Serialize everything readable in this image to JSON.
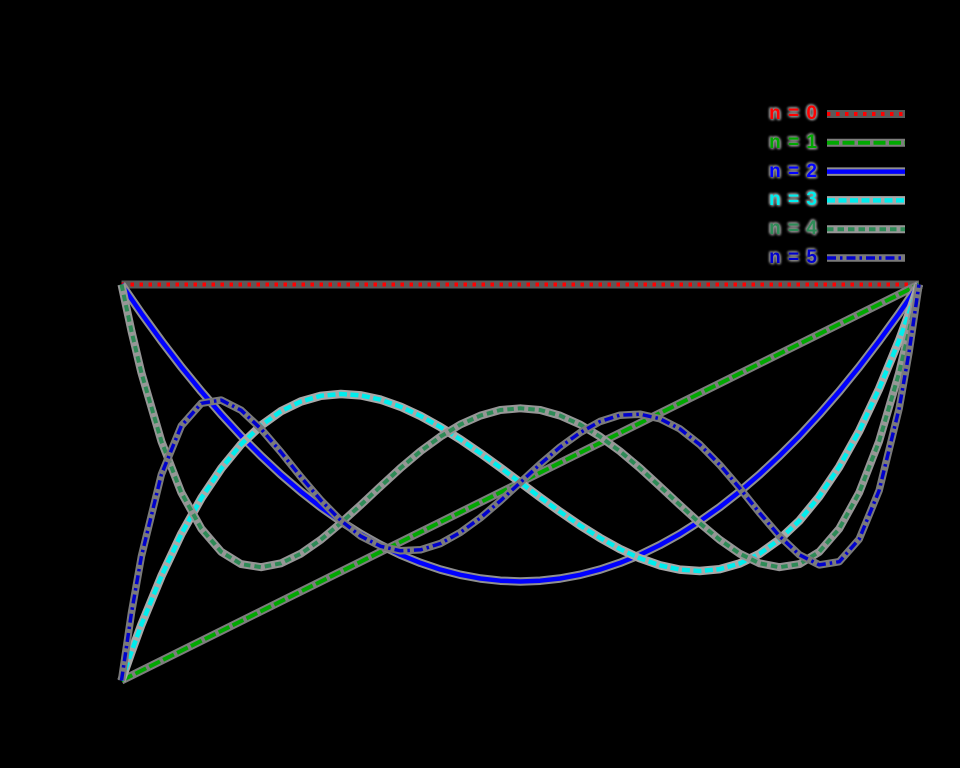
{
  "figure": {
    "background": "#000000",
    "halo_note": "each curve and legend sample has a continuous gray anti-alias halo band under it",
    "legend": {
      "position": "top-right, above plot area",
      "labels": [
        "n = 0",
        "n = 1",
        "n = 2",
        "n = 3",
        "n = 4",
        "n = 5"
      ]
    }
  },
  "chart_data": {
    "type": "line",
    "title": "",
    "xlabel": "",
    "ylabel": "",
    "xlim": [
      -1,
      1
    ],
    "ylim": [
      -1,
      1
    ],
    "grid": false,
    "legend_position": "top-right outside plot box",
    "description": "First six Legendre polynomials P_n(x) on [-1,1]",
    "series": [
      {
        "name": "n = 0",
        "color": "#ff0000",
        "halo": "#5a5a5a",
        "dash": "dotted",
        "width": 4,
        "x": [
          -1,
          1
        ],
        "y": [
          1,
          1
        ]
      },
      {
        "name": "n = 1",
        "color": "#00a800",
        "halo": "#7d7d7d",
        "dash": "longdash",
        "width": 4,
        "x": [
          -1,
          1
        ],
        "y": [
          -1,
          1
        ]
      },
      {
        "name": "n = 2",
        "color": "#0000ff",
        "halo": "#8f8f8f",
        "dash": "solid",
        "width": 4.5,
        "x": [
          -1,
          -0.95,
          -0.9,
          -0.85,
          -0.8,
          -0.75,
          -0.7,
          -0.65,
          -0.6,
          -0.55,
          -0.5,
          -0.45,
          -0.4,
          -0.35,
          -0.3,
          -0.25,
          -0.2,
          -0.15,
          -0.1,
          -0.05,
          0,
          0.05,
          0.1,
          0.15,
          0.2,
          0.25,
          0.3,
          0.35,
          0.4,
          0.45,
          0.5,
          0.55,
          0.6,
          0.65,
          0.7,
          0.75,
          0.8,
          0.85,
          0.9,
          0.95,
          1
        ],
        "y": [
          1,
          0.854,
          0.715,
          0.584,
          0.46,
          0.344,
          0.235,
          0.134,
          0.04,
          -0.046,
          -0.125,
          -0.196,
          -0.26,
          -0.316,
          -0.365,
          -0.406,
          -0.44,
          -0.466,
          -0.485,
          -0.496,
          -0.5,
          -0.496,
          -0.485,
          -0.466,
          -0.44,
          -0.406,
          -0.365,
          -0.316,
          -0.26,
          -0.196,
          -0.125,
          -0.046,
          0.04,
          0.134,
          0.235,
          0.344,
          0.46,
          0.584,
          0.715,
          0.854,
          1
        ]
      },
      {
        "name": "n = 3",
        "color": "#00eeee",
        "halo": "#a9a9a9",
        "dash": "dash",
        "width": 4.5,
        "x": [
          -1,
          -0.975,
          -0.95,
          -0.9,
          -0.85,
          -0.8,
          -0.75,
          -0.7,
          -0.65,
          -0.6,
          -0.55,
          -0.5,
          -0.45,
          -0.4,
          -0.35,
          -0.3,
          -0.25,
          -0.2,
          -0.15,
          -0.1,
          -0.05,
          0,
          0.05,
          0.1,
          0.15,
          0.2,
          0.25,
          0.3,
          0.35,
          0.4,
          0.45,
          0.5,
          0.55,
          0.6,
          0.65,
          0.7,
          0.75,
          0.8,
          0.85,
          0.9,
          0.95,
          0.975,
          1
        ],
        "y": [
          -1,
          -0.855,
          -0.718,
          -0.473,
          -0.26,
          -0.08,
          0.07,
          0.193,
          0.288,
          0.36,
          0.409,
          0.438,
          0.447,
          0.44,
          0.418,
          0.383,
          0.336,
          0.28,
          0.217,
          0.148,
          0.075,
          0,
          -0.075,
          -0.148,
          -0.217,
          -0.28,
          -0.336,
          -0.383,
          -0.418,
          -0.44,
          -0.447,
          -0.438,
          -0.409,
          -0.36,
          -0.288,
          -0.193,
          -0.07,
          0.08,
          0.26,
          0.473,
          0.718,
          0.855,
          1
        ]
      },
      {
        "name": "n = 4",
        "color": "#2e8b57",
        "halo": "#969696",
        "dash": "shortdash",
        "width": 4,
        "x": [
          -1,
          -0.975,
          -0.95,
          -0.9,
          -0.85,
          -0.8,
          -0.75,
          -0.7,
          -0.65,
          -0.6,
          -0.55,
          -0.5,
          -0.45,
          -0.4,
          -0.35,
          -0.3,
          -0.25,
          -0.2,
          -0.15,
          -0.1,
          -0.05,
          0,
          0.05,
          0.1,
          0.15,
          0.2,
          0.25,
          0.3,
          0.35,
          0.4,
          0.45,
          0.5,
          0.55,
          0.6,
          0.65,
          0.7,
          0.75,
          0.8,
          0.85,
          0.9,
          0.95,
          0.975,
          1
        ],
        "y": [
          1,
          0.764,
          0.554,
          0.208,
          -0.051,
          -0.233,
          -0.35,
          -0.412,
          -0.428,
          -0.408,
          -0.359,
          -0.289,
          -0.205,
          -0.113,
          -0.019,
          0.073,
          0.158,
          0.232,
          0.293,
          0.338,
          0.366,
          0.375,
          0.366,
          0.338,
          0.293,
          0.232,
          0.158,
          0.073,
          -0.019,
          -0.113,
          -0.205,
          -0.289,
          -0.359,
          -0.408,
          -0.428,
          -0.412,
          -0.35,
          -0.233,
          -0.051,
          0.208,
          0.554,
          0.764,
          1
        ]
      },
      {
        "name": "n = 5",
        "color": "#0000cd",
        "halo": "#7a7a7a",
        "dash": "dashdot",
        "width": 3.5,
        "x": [
          -1,
          -0.975,
          -0.95,
          -0.9,
          -0.85,
          -0.8,
          -0.75,
          -0.7,
          -0.65,
          -0.6,
          -0.55,
          -0.5,
          -0.45,
          -0.4,
          -0.35,
          -0.3,
          -0.25,
          -0.2,
          -0.15,
          -0.1,
          -0.05,
          0,
          0.05,
          0.1,
          0.15,
          0.2,
          0.25,
          0.3,
          0.35,
          0.4,
          0.45,
          0.5,
          0.55,
          0.6,
          0.65,
          0.7,
          0.75,
          0.8,
          0.85,
          0.9,
          0.95,
          0.975,
          1
        ],
        "y": [
          -1,
          -0.657,
          -0.373,
          0.041,
          0.286,
          0.4,
          0.416,
          0.365,
          0.27,
          0.153,
          0.028,
          -0.09,
          -0.192,
          -0.271,
          -0.322,
          -0.345,
          -0.34,
          -0.308,
          -0.252,
          -0.179,
          -0.093,
          0,
          0.093,
          0.179,
          0.252,
          0.308,
          0.34,
          0.345,
          0.322,
          0.271,
          0.192,
          0.09,
          -0.028,
          -0.153,
          -0.27,
          -0.365,
          -0.416,
          -0.4,
          -0.286,
          -0.041,
          0.373,
          0.657,
          1
        ]
      }
    ]
  }
}
